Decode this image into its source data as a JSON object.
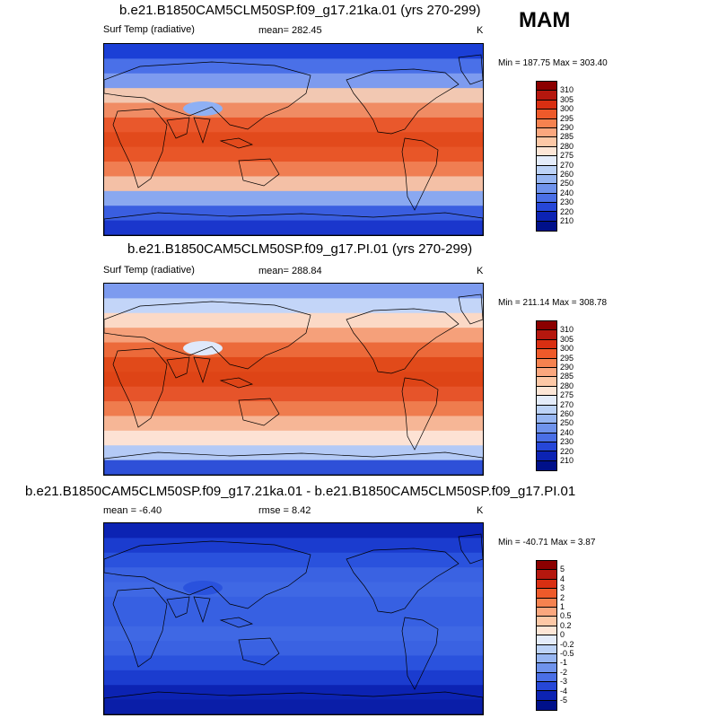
{
  "season_label": "MAM",
  "panels": [
    {
      "title": "b.e21.B1850CAM5CLM50SP.f09_g17.21ka.01 (yrs 270-299)",
      "variable": "Surf Temp (radiative)",
      "mean_text": "mean= 282.45",
      "units": "K",
      "minmax_text": "Min = 187.75 Max = 303.40",
      "colorbar_labels": [
        "310",
        "305",
        "300",
        "295",
        "290",
        "285",
        "280",
        "275",
        "270",
        "260",
        "250",
        "240",
        "230",
        "220",
        "210"
      ],
      "colorbar_colors": [
        "#8b0000",
        "#b5170e",
        "#d92f12",
        "#ee5a2a",
        "#f6824f",
        "#fba77e",
        "#fdc8a6",
        "#fde6d6",
        "#e4ecfa",
        "#bdd3f7",
        "#97b6f2",
        "#6f93ec",
        "#4a6fe6",
        "#2647d8",
        "#0c23b3",
        "#00108a"
      ],
      "map_bands": [
        "#1b3fd6",
        "#4a70e8",
        "#7d9bef",
        "#f2c8b2",
        "#f08c64",
        "#e9582c",
        "#e24a1c",
        "#e85628",
        "#f07e52",
        "#f4c0a6",
        "#8aa8f0",
        "#3a5ee0",
        "#1a36cc"
      ],
      "plateau_color": "#8eb0f4"
    },
    {
      "title": "b.e21.B1850CAM5CLM50SP.f09_g17.PI.01 (yrs 270-299)",
      "variable": "Surf Temp (radiative)",
      "mean_text": "mean= 288.84",
      "units": "K",
      "minmax_text": "Min = 211.14 Max = 308.78",
      "colorbar_labels": [
        "310",
        "305",
        "300",
        "295",
        "290",
        "285",
        "280",
        "275",
        "270",
        "260",
        "250",
        "240",
        "230",
        "220",
        "210"
      ],
      "colorbar_colors": [
        "#8b0000",
        "#b5170e",
        "#d92f12",
        "#ee5a2a",
        "#f6824f",
        "#fba77e",
        "#fdc8a6",
        "#fde6d6",
        "#e4ecfa",
        "#bdd3f7",
        "#97b6f2",
        "#6f93ec",
        "#4a6fe6",
        "#2647d8",
        "#0c23b3",
        "#00108a"
      ],
      "map_bands": [
        "#7d9bef",
        "#c3d5f8",
        "#fbd9c6",
        "#f5a07a",
        "#ec6a3a",
        "#e14a1a",
        "#de4416",
        "#e6542a",
        "#ef7c4e",
        "#f6b696",
        "#fde2d4",
        "#b4caf6",
        "#2e50d8"
      ],
      "plateau_color": "#dfe9fb"
    },
    {
      "title": "b.e21.B1850CAM5CLM50SP.f09_g17.21ka.01 - b.e21.B1850CAM5CLM50SP.f09_g17.PI.01",
      "mean_text": "mean =  -6.40",
      "rmse_text": "rmse =   8.42",
      "units": "K",
      "minmax_text": "Min = -40.71 Max =   3.87",
      "colorbar_labels": [
        "5",
        "4",
        "3",
        "2",
        "1",
        "0.5",
        "0.2",
        "0",
        "-0.2",
        "-0.5",
        "-1",
        "-2",
        "-3",
        "-4",
        "-5"
      ],
      "colorbar_colors": [
        "#8b0000",
        "#b5170e",
        "#d92f12",
        "#ee5a2a",
        "#f6824f",
        "#fba77e",
        "#fdc8a6",
        "#fde6d6",
        "#e4ecfa",
        "#bdd3f7",
        "#97b6f2",
        "#6f93ec",
        "#4a6fe6",
        "#2647d8",
        "#0c23b3",
        "#00108a"
      ],
      "map_bands": [
        "#0c23b3",
        "#1b3ccf",
        "#2a52dd",
        "#3a62e2",
        "#3f68e4",
        "#3760e2",
        "#3760e2",
        "#3f68e4",
        "#3a62e2",
        "#2a52dd",
        "#1b3ccf",
        "#0c23b3",
        "#0a1ea8"
      ],
      "plateau_color": "#2a52dd"
    }
  ]
}
